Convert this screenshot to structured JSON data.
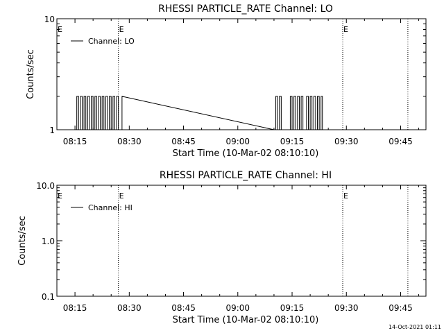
{
  "footer_timestamp": "14-Oct-2021 01:11",
  "chart_data": [
    {
      "type": "line",
      "title": "RHESSI PARTICLE_RATE Channel: LO",
      "xlabel": "Start Time (10-Mar-02 08:10:10)",
      "ylabel": "Counts/sec",
      "yscale": "log",
      "ylim": [
        1,
        10
      ],
      "yticks": [
        {
          "value": 1,
          "label": "1"
        },
        {
          "value": 10,
          "label": "10"
        }
      ],
      "xlim": [
        "08:10",
        "09:52"
      ],
      "xticks": [
        "08:15",
        "08:30",
        "08:45",
        "09:00",
        "09:15",
        "09:30",
        "09:45"
      ],
      "legend": {
        "label": "Channel: LO",
        "placement": "top-left"
      },
      "event_markers": [
        {
          "time": "08:27",
          "label": "E"
        },
        {
          "time": "09:29",
          "label": "E"
        },
        {
          "time": "09:47",
          "label": ""
        }
      ],
      "series": [
        {
          "values_note": "",
          "x": [
            "08:15:00",
            "08:15:30",
            "08:16:00",
            "08:16:30",
            "08:17:00",
            "08:17:30",
            "08:18:00",
            "08:18:30",
            "08:19:00",
            "08:19:30",
            "08:20:00",
            "08:20:30",
            "08:21:00",
            "08:21:30",
            "08:22:00",
            "08:22:30",
            "08:23:00",
            "08:23:30",
            "08:24:00",
            "08:24:30",
            "08:25:00",
            "08:25:30",
            "08:26:00",
            "08:26:30",
            "08:27:00",
            "08:27:30",
            "08:28:00",
            "09:10:00",
            "09:10:30",
            "09:11:00",
            "09:11:30",
            "09:12:00",
            "09:12:30",
            "09:13:00",
            "09:13:30",
            "09:14:00",
            "09:14:30",
            "09:15:00",
            "09:15:30",
            "09:16:00",
            "09:16:30",
            "09:17:00",
            "09:17:30",
            "09:18:00",
            "09:18:30",
            "09:19:00",
            "09:19:30",
            "09:20:00",
            "09:20:30",
            "09:21:00",
            "09:21:30",
            "09:22:00",
            "09:22:30",
            "09:23:00"
          ],
          "y": [
            1,
            2,
            1,
            2,
            1,
            2,
            1,
            2,
            1,
            2,
            1,
            2,
            1,
            2,
            1,
            2,
            1,
            2,
            1,
            2,
            1,
            2,
            1,
            2,
            1,
            1,
            2,
            1,
            2,
            1,
            2,
            1,
            1,
            1,
            1,
            1,
            2,
            1,
            2,
            1,
            2,
            1,
            2,
            1,
            1,
            2,
            1,
            2,
            1,
            2,
            1,
            2,
            1,
            2
          ]
        }
      ]
    },
    {
      "type": "line",
      "title": "RHESSI PARTICLE_RATE Channel: HI",
      "xlabel": "Start Time (10-Mar-02 08:10:10)",
      "ylabel": "Counts/sec",
      "yscale": "log",
      "ylim": [
        0.1,
        10
      ],
      "yticks": [
        {
          "value": 0.1,
          "label": "0.1"
        },
        {
          "value": 1,
          "label": "1.0"
        },
        {
          "value": 10,
          "label": "10.0"
        }
      ],
      "xlim": [
        "08:10",
        "09:52"
      ],
      "xticks": [
        "08:15",
        "08:30",
        "08:45",
        "09:00",
        "09:15",
        "09:30",
        "09:45"
      ],
      "legend": {
        "label": "Channel: HI",
        "placement": "top-left"
      },
      "event_markers": [
        {
          "time": "08:27",
          "label": "E"
        },
        {
          "time": "09:29",
          "label": "E"
        },
        {
          "time": "09:47",
          "label": ""
        }
      ],
      "series": []
    }
  ]
}
